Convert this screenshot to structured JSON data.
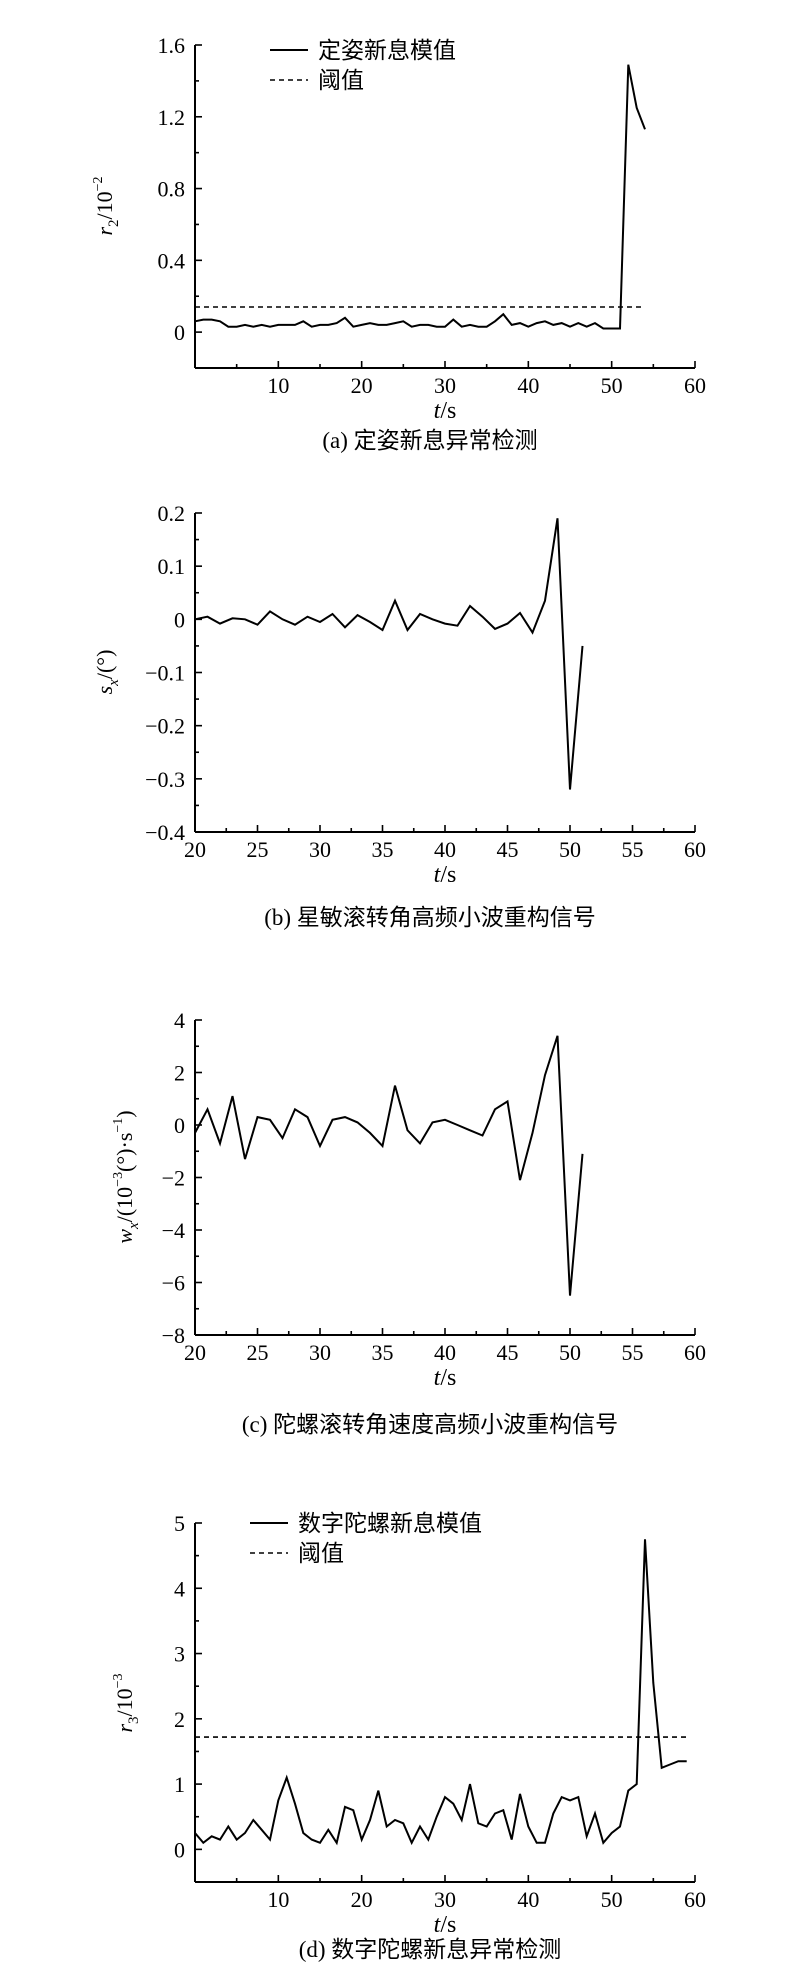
{
  "chart_data": [
    {
      "type": "line",
      "caption": "(a) 定姿新息异常检测",
      "xlabel": "t/s",
      "ylabel": "r2/10⁻²",
      "xlim": [
        0,
        60
      ],
      "ylim": [
        -0.2,
        1.6
      ],
      "xticks": [
        10,
        20,
        30,
        40,
        50,
        60
      ],
      "yticks": [
        0,
        0.4,
        0.8,
        1.2,
        1.6
      ],
      "ytick_labels": [
        "0",
        "0.4",
        "0.8",
        "1.2",
        "1.6"
      ],
      "legend_position": "top-left",
      "series": [
        {
          "name": "定姿新息模值",
          "style": "solid",
          "x": [
            0,
            1,
            2,
            3,
            4,
            5,
            6,
            7,
            8,
            9,
            10,
            11,
            12,
            13,
            14,
            15,
            16,
            17,
            18,
            19,
            20,
            21,
            22,
            23,
            24,
            25,
            26,
            27,
            28,
            29,
            30,
            31,
            32,
            33,
            34,
            35,
            36,
            37,
            38,
            39,
            40,
            41,
            42,
            43,
            44,
            45,
            46,
            47,
            48,
            49,
            50,
            51,
            52,
            53,
            54
          ],
          "y": [
            0.06,
            0.07,
            0.07,
            0.06,
            0.03,
            0.03,
            0.04,
            0.03,
            0.04,
            0.03,
            0.04,
            0.04,
            0.04,
            0.06,
            0.03,
            0.04,
            0.04,
            0.05,
            0.08,
            0.03,
            0.04,
            0.05,
            0.04,
            0.04,
            0.05,
            0.06,
            0.03,
            0.04,
            0.04,
            0.03,
            0.03,
            0.07,
            0.03,
            0.04,
            0.03,
            0.03,
            0.06,
            0.1,
            0.04,
            0.05,
            0.03,
            0.05,
            0.06,
            0.04,
            0.05,
            0.03,
            0.05,
            0.03,
            0.05,
            0.02,
            0.02,
            0.02,
            1.49,
            1.25,
            1.13
          ]
        },
        {
          "name": "阈值",
          "style": "dashed",
          "x": [
            0,
            54
          ],
          "y": [
            0.14,
            0.14
          ]
        }
      ]
    },
    {
      "type": "line",
      "caption": "(b) 星敏滚转角高频小波重构信号",
      "xlabel": "t/s",
      "ylabel": "sx/(°)",
      "xlim": [
        20,
        60
      ],
      "ylim": [
        -0.4,
        0.2
      ],
      "xticks": [
        20,
        25,
        30,
        35,
        40,
        45,
        50,
        55,
        60
      ],
      "yticks": [
        -0.4,
        -0.3,
        -0.2,
        -0.1,
        0,
        0.1,
        0.2
      ],
      "ytick_labels": [
        "−0.4",
        "−0.3",
        "−0.2",
        "−0.1",
        "0",
        "0.1",
        "0.2"
      ],
      "series": [
        {
          "name": "",
          "style": "solid",
          "x": [
            20,
            21,
            22,
            23,
            24,
            25,
            26,
            27,
            28,
            29,
            30,
            31,
            32,
            33,
            34,
            35,
            36,
            37,
            38,
            39,
            40,
            41,
            42,
            43,
            44,
            45,
            46,
            47,
            48,
            49,
            50,
            51
          ],
          "y": [
            0.0,
            0.005,
            -0.008,
            0.002,
            0.0,
            -0.01,
            0.015,
            0.0,
            -0.01,
            0.005,
            -0.005,
            0.01,
            -0.015,
            0.008,
            -0.005,
            -0.02,
            0.035,
            -0.02,
            0.01,
            0.0,
            -0.008,
            -0.012,
            0.025,
            0.005,
            -0.018,
            -0.008,
            0.012,
            -0.025,
            0.035,
            0.19,
            -0.32,
            -0.05
          ]
        }
      ]
    },
    {
      "type": "line",
      "caption": "(c) 陀螺滚转角速度高频小波重构信号",
      "xlabel": "t/s",
      "ylabel": "wx/(10⁻³(°)·s⁻¹)",
      "xlim": [
        20,
        60
      ],
      "ylim": [
        -8,
        4
      ],
      "xticks": [
        20,
        25,
        30,
        35,
        40,
        45,
        50,
        55,
        60
      ],
      "yticks": [
        -8,
        -6,
        -4,
        -2,
        0,
        2,
        4
      ],
      "ytick_labels": [
        "−8",
        "−6",
        "−4",
        "−2",
        "0",
        "2",
        "4"
      ],
      "series": [
        {
          "name": "",
          "style": "solid",
          "x": [
            20,
            21,
            22,
            23,
            24,
            25,
            26,
            27,
            28,
            29,
            30,
            31,
            32,
            33,
            34,
            35,
            36,
            37,
            38,
            39,
            40,
            41,
            42,
            43,
            44,
            45,
            46,
            47,
            48,
            49,
            50,
            51
          ],
          "y": [
            -0.3,
            0.6,
            -0.7,
            1.1,
            -1.3,
            0.3,
            0.2,
            -0.5,
            0.6,
            0.3,
            -0.8,
            0.2,
            0.3,
            0.1,
            -0.3,
            -0.8,
            1.5,
            -0.2,
            -0.7,
            0.1,
            0.2,
            0.0,
            -0.2,
            -0.4,
            0.6,
            0.9,
            -2.1,
            -0.3,
            1.9,
            3.4,
            -6.5,
            -1.1
          ]
        }
      ]
    },
    {
      "type": "line",
      "caption": "(d) 数字陀螺新息异常检测",
      "xlabel": "t/s",
      "ylabel": "r3/10⁻³",
      "xlim": [
        0,
        60
      ],
      "ylim": [
        -0.5,
        5
      ],
      "xticks": [
        10,
        20,
        30,
        40,
        50,
        60
      ],
      "yticks": [
        0,
        1,
        2,
        3,
        4,
        5
      ],
      "ytick_labels": [
        "0",
        "1",
        "2",
        "3",
        "4",
        "5"
      ],
      "legend_position": "top-left",
      "series": [
        {
          "name": "数字陀螺新息模值",
          "style": "solid",
          "x": [
            0,
            1,
            2,
            3,
            4,
            5,
            6,
            7,
            8,
            9,
            10,
            11,
            12,
            13,
            14,
            15,
            16,
            17,
            18,
            19,
            20,
            21,
            22,
            23,
            24,
            25,
            26,
            27,
            28,
            29,
            30,
            31,
            32,
            33,
            34,
            35,
            36,
            37,
            38,
            39,
            40,
            41,
            42,
            43,
            44,
            45,
            46,
            47,
            48,
            49,
            50,
            51,
            52,
            53,
            54,
            55,
            56,
            57,
            58,
            59
          ],
          "y": [
            0.25,
            0.1,
            0.2,
            0.15,
            0.35,
            0.15,
            0.25,
            0.45,
            0.3,
            0.15,
            0.75,
            1.1,
            0.7,
            0.25,
            0.15,
            0.1,
            0.3,
            0.1,
            0.65,
            0.6,
            0.15,
            0.45,
            0.9,
            0.35,
            0.45,
            0.4,
            0.1,
            0.35,
            0.15,
            0.5,
            0.8,
            0.7,
            0.45,
            1.0,
            0.4,
            0.35,
            0.55,
            0.6,
            0.15,
            0.85,
            0.35,
            0.1,
            0.1,
            0.55,
            0.8,
            0.75,
            0.8,
            0.2,
            0.55,
            0.1,
            0.25,
            0.35,
            0.9,
            1.0,
            4.75,
            2.55,
            1.25,
            1.3,
            1.35,
            1.35
          ]
        },
        {
          "name": "阈值",
          "style": "dashed",
          "x": [
            0,
            59
          ],
          "y": [
            1.72,
            1.72
          ]
        }
      ]
    }
  ]
}
